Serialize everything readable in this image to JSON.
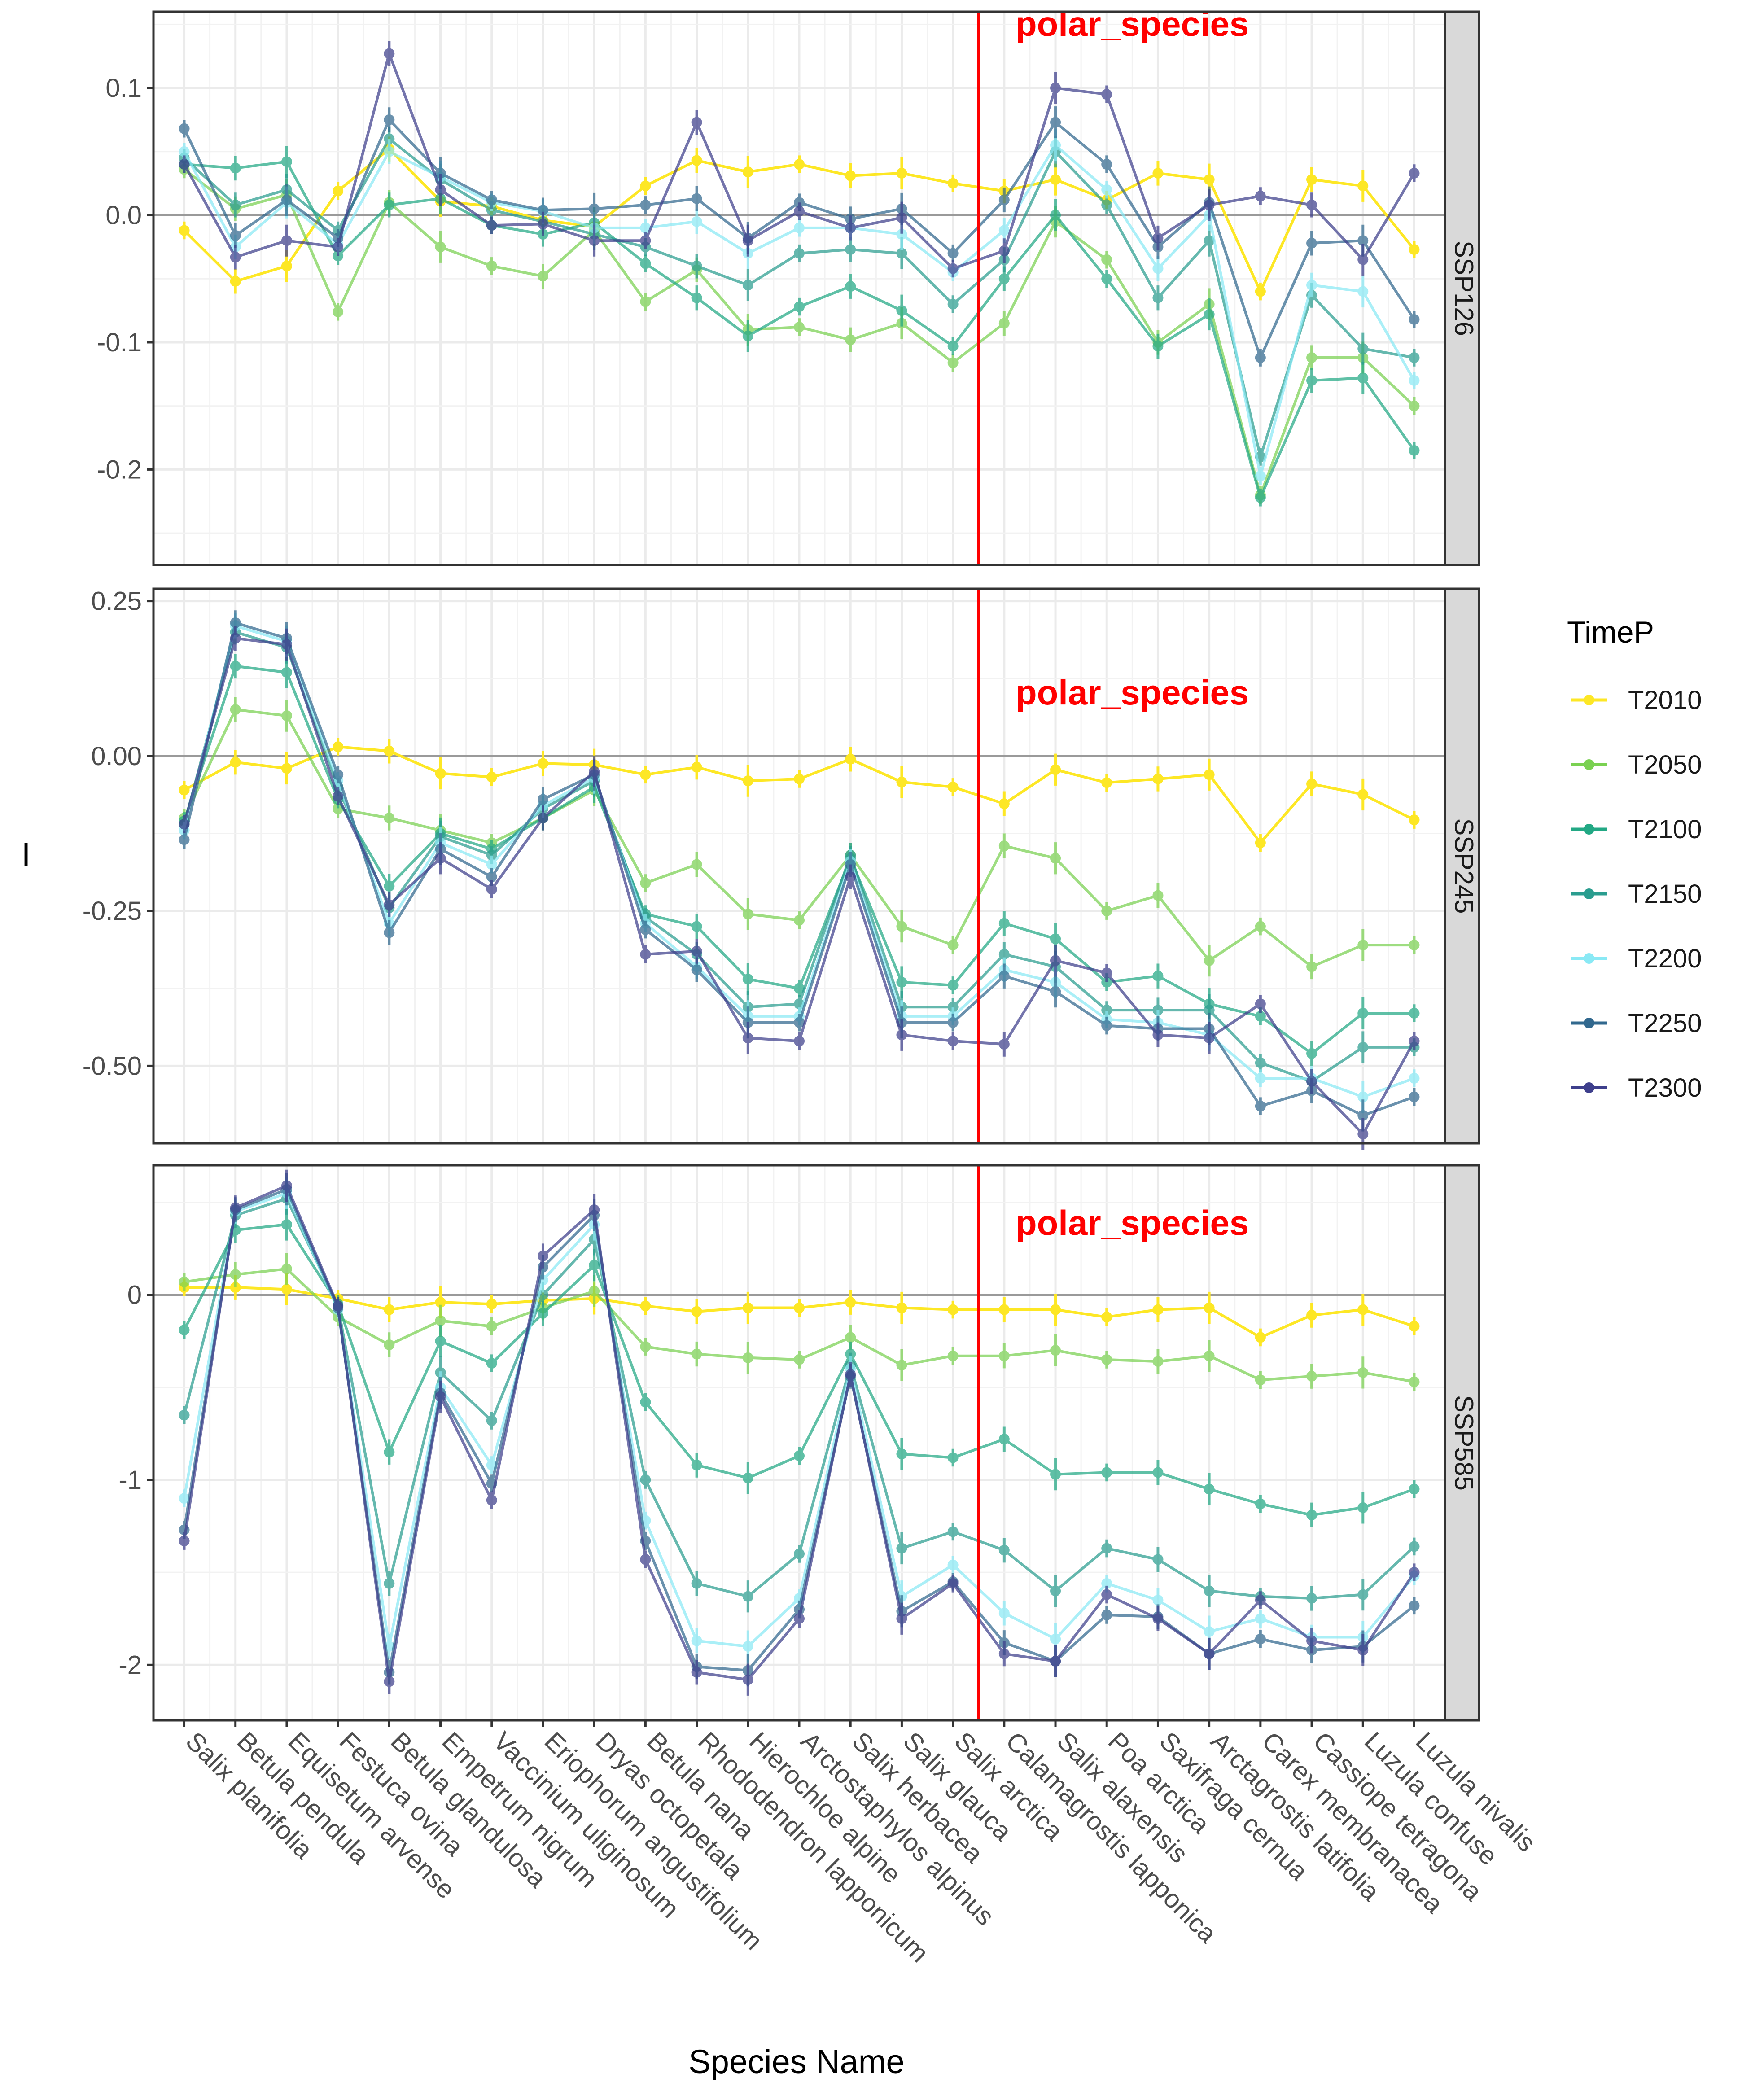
{
  "chart_data": {
    "type": "line",
    "xlabel": "Species Name",
    "ylabel": "I",
    "legend": {
      "title": "TimeP",
      "placement": "right"
    },
    "annotation": "polar_species",
    "annotation_color": "#FF0000",
    "vline_between": [
      "Salix arctica",
      "Calamagrostis lapponica"
    ],
    "categories": [
      "Salix planifolia",
      "Betula pendula",
      "Equisetum arvense",
      "Festuca ovina",
      "Betula glandulosa",
      "Empetrum nigrum",
      "Vaccinium uliginosum",
      "Eriophorum angustifolium",
      "Dryas octopetala",
      "Betula nana",
      "Rhododendron lapponicum",
      "Hierochloe alpine",
      "Arctostaphylos alpinus",
      "Salix herbacea",
      "Salix glauca",
      "Salix arctica",
      "Calamagrostis lapponica",
      "Salix alaxensis",
      "Poa arctica",
      "Saxifraga cernua",
      "Arctagrostis latifolia",
      "Carex membranacea",
      "Cassiope tetragona",
      "Luzula confuse",
      "Luzula nivalis"
    ],
    "series_meta": [
      {
        "name": "T2010",
        "color": "#FDE725"
      },
      {
        "name": "T2050",
        "color": "#7AD151"
      },
      {
        "name": "T2100",
        "color": "#22A884"
      },
      {
        "name": "T2150",
        "color": "#2A9D8F"
      },
      {
        "name": "T2200",
        "color": "#8AE9F5"
      },
      {
        "name": "T2250",
        "color": "#31688E"
      },
      {
        "name": "T2300",
        "color": "#3E3F8C"
      }
    ],
    "panels": [
      {
        "strip": "SSP126",
        "ylim": [
          -0.275,
          0.16
        ],
        "ticks": [
          -0.2,
          -0.1,
          0.0,
          0.1
        ],
        "tick_labels": [
          "-0.2",
          "-0.1",
          "0.0",
          "0.1"
        ],
        "series": [
          {
            "name": "T2010",
            "values": [
              -0.012,
              -0.052,
              -0.04,
              0.019,
              0.052,
              0.011,
              0.007,
              -0.004,
              -0.009,
              0.023,
              0.043,
              0.034,
              0.04,
              0.031,
              0.033,
              0.025,
              0.019,
              0.028,
              0.012,
              0.033,
              0.028,
              -0.06,
              0.028,
              0.023,
              -0.027
            ]
          },
          {
            "name": "T2050",
            "values": [
              0.036,
              0.005,
              0.016,
              -0.076,
              0.01,
              -0.025,
              -0.04,
              -0.048,
              -0.012,
              -0.068,
              -0.043,
              -0.09,
              -0.088,
              -0.098,
              -0.085,
              -0.116,
              -0.085,
              -0.005,
              -0.035,
              -0.1,
              -0.07,
              -0.22,
              -0.112,
              -0.112,
              -0.15
            ]
          },
          {
            "name": "T2100",
            "values": [
              0.04,
              0.037,
              0.042,
              -0.032,
              0.008,
              0.013,
              -0.008,
              -0.015,
              -0.006,
              -0.038,
              -0.065,
              -0.095,
              -0.072,
              -0.056,
              -0.075,
              -0.103,
              -0.05,
              0.0,
              -0.05,
              -0.103,
              -0.078,
              -0.222,
              -0.13,
              -0.128,
              -0.185
            ]
          },
          {
            "name": "T2150",
            "values": [
              0.045,
              0.008,
              0.02,
              -0.012,
              0.06,
              0.028,
              0.004,
              -0.005,
              -0.015,
              -0.025,
              -0.04,
              -0.055,
              -0.03,
              -0.027,
              -0.03,
              -0.07,
              -0.035,
              0.05,
              0.008,
              -0.065,
              -0.02,
              -0.19,
              -0.063,
              -0.105,
              -0.112
            ]
          },
          {
            "name": "T2200",
            "values": [
              0.05,
              -0.025,
              0.01,
              -0.023,
              0.05,
              0.03,
              0.01,
              0.003,
              -0.01,
              -0.01,
              -0.005,
              -0.03,
              -0.01,
              -0.01,
              -0.015,
              -0.045,
              -0.012,
              0.055,
              0.02,
              -0.042,
              0.0,
              -0.205,
              -0.055,
              -0.06,
              -0.13
            ]
          },
          {
            "name": "T2250",
            "values": [
              0.068,
              -0.016,
              0.012,
              -0.018,
              0.075,
              0.033,
              0.012,
              0.004,
              0.005,
              0.008,
              0.013,
              -0.018,
              0.01,
              -0.003,
              0.005,
              -0.03,
              0.012,
              0.073,
              0.04,
              -0.025,
              0.01,
              -0.112,
              -0.022,
              -0.02,
              -0.082
            ]
          },
          {
            "name": "T2300",
            "values": [
              0.04,
              -0.033,
              -0.02,
              -0.025,
              0.127,
              0.02,
              -0.008,
              -0.007,
              -0.02,
              -0.02,
              0.073,
              -0.02,
              0.003,
              -0.01,
              -0.002,
              -0.042,
              -0.028,
              0.1,
              0.095,
              -0.018,
              0.008,
              0.015,
              0.008,
              -0.035,
              0.033
            ]
          }
        ]
      },
      {
        "strip": "SSP245",
        "ylim": [
          -0.625,
          0.27
        ],
        "ticks": [
          -0.5,
          -0.25,
          0.0,
          0.25
        ],
        "tick_labels": [
          "-0.50",
          "-0.25",
          "0.00",
          "0.25"
        ],
        "series": [
          {
            "name": "T2010",
            "values": [
              -0.055,
              -0.01,
              -0.02,
              0.015,
              0.008,
              -0.028,
              -0.034,
              -0.012,
              -0.014,
              -0.03,
              -0.018,
              -0.04,
              -0.037,
              -0.005,
              -0.042,
              -0.05,
              -0.077,
              -0.022,
              -0.043,
              -0.037,
              -0.03,
              -0.14,
              -0.045,
              -0.062,
              -0.103
            ]
          },
          {
            "name": "T2050",
            "values": [
              -0.1,
              0.075,
              0.065,
              -0.085,
              -0.1,
              -0.12,
              -0.14,
              -0.1,
              -0.055,
              -0.205,
              -0.175,
              -0.255,
              -0.265,
              -0.16,
              -0.275,
              -0.305,
              -0.145,
              -0.165,
              -0.25,
              -0.225,
              -0.33,
              -0.275,
              -0.34,
              -0.305,
              -0.305
            ]
          },
          {
            "name": "T2100",
            "values": [
              -0.105,
              0.145,
              0.135,
              -0.07,
              -0.21,
              -0.125,
              -0.15,
              -0.1,
              -0.05,
              -0.255,
              -0.275,
              -0.36,
              -0.375,
              -0.165,
              -0.365,
              -0.37,
              -0.27,
              -0.295,
              -0.365,
              -0.355,
              -0.4,
              -0.42,
              -0.48,
              -0.415,
              -0.415
            ]
          },
          {
            "name": "T2150",
            "values": [
              -0.11,
              0.2,
              0.175,
              -0.05,
              -0.245,
              -0.13,
              -0.16,
              -0.085,
              -0.04,
              -0.26,
              -0.32,
              -0.405,
              -0.4,
              -0.16,
              -0.405,
              -0.405,
              -0.32,
              -0.34,
              -0.41,
              -0.41,
              -0.41,
              -0.495,
              -0.525,
              -0.47,
              -0.47
            ]
          },
          {
            "name": "T2200",
            "values": [
              -0.12,
              0.21,
              0.185,
              -0.04,
              -0.27,
              -0.14,
              -0.175,
              -0.08,
              -0.035,
              -0.27,
              -0.34,
              -0.42,
              -0.42,
              -0.17,
              -0.42,
              -0.42,
              -0.345,
              -0.365,
              -0.425,
              -0.43,
              -0.45,
              -0.52,
              -0.52,
              -0.55,
              -0.52
            ]
          },
          {
            "name": "T2250",
            "values": [
              -0.135,
              0.215,
              0.19,
              -0.03,
              -0.285,
              -0.15,
              -0.195,
              -0.07,
              -0.03,
              -0.28,
              -0.345,
              -0.43,
              -0.43,
              -0.175,
              -0.43,
              -0.43,
              -0.355,
              -0.38,
              -0.435,
              -0.44,
              -0.44,
              -0.565,
              -0.54,
              -0.58,
              -0.55
            ]
          },
          {
            "name": "T2300",
            "values": [
              -0.11,
              0.19,
              0.18,
              -0.065,
              -0.24,
              -0.165,
              -0.215,
              -0.1,
              -0.025,
              -0.32,
              -0.315,
              -0.455,
              -0.46,
              -0.195,
              -0.45,
              -0.46,
              -0.465,
              -0.33,
              -0.35,
              -0.45,
              -0.455,
              -0.4,
              -0.525,
              -0.61,
              -0.46
            ]
          }
        ]
      },
      {
        "strip": "SSP585",
        "ylim": [
          -2.3,
          0.7
        ],
        "ticks": [
          -2,
          -1,
          0
        ],
        "tick_labels": [
          "-2",
          "-1",
          "0"
        ],
        "series": [
          {
            "name": "T2010",
            "values": [
              0.04,
              0.04,
              0.03,
              -0.02,
              -0.08,
              -0.04,
              -0.05,
              -0.03,
              -0.02,
              -0.06,
              -0.09,
              -0.07,
              -0.07,
              -0.04,
              -0.07,
              -0.08,
              -0.08,
              -0.08,
              -0.12,
              -0.08,
              -0.07,
              -0.23,
              -0.11,
              -0.08,
              -0.17
            ]
          },
          {
            "name": "T2050",
            "values": [
              0.07,
              0.11,
              0.14,
              -0.12,
              -0.27,
              -0.14,
              -0.17,
              -0.07,
              0.02,
              -0.28,
              -0.32,
              -0.34,
              -0.35,
              -0.23,
              -0.38,
              -0.33,
              -0.33,
              -0.3,
              -0.35,
              -0.36,
              -0.33,
              -0.46,
              -0.44,
              -0.42,
              -0.47
            ]
          },
          {
            "name": "T2100",
            "values": [
              -0.19,
              0.35,
              0.38,
              -0.05,
              -0.85,
              -0.25,
              -0.37,
              -0.1,
              0.16,
              -0.58,
              -0.92,
              -0.99,
              -0.87,
              -0.32,
              -0.86,
              -0.88,
              -0.78,
              -0.97,
              -0.96,
              -0.96,
              -1.05,
              -1.13,
              -1.19,
              -1.15,
              -1.05
            ]
          },
          {
            "name": "T2150",
            "values": [
              -0.65,
              0.43,
              0.52,
              -0.06,
              -1.56,
              -0.42,
              -0.68,
              0.0,
              0.3,
              -1.0,
              -1.56,
              -1.63,
              -1.4,
              -0.38,
              -1.37,
              -1.28,
              -1.38,
              -1.6,
              -1.37,
              -1.43,
              -1.6,
              -1.63,
              -1.64,
              -1.62,
              -1.36
            ]
          },
          {
            "name": "T2200",
            "values": [
              -1.1,
              0.45,
              0.55,
              -0.08,
              -1.9,
              -0.5,
              -0.92,
              0.08,
              0.38,
              -1.22,
              -1.87,
              -1.9,
              -1.64,
              -0.4,
              -1.63,
              -1.46,
              -1.72,
              -1.86,
              -1.56,
              -1.65,
              -1.82,
              -1.75,
              -1.85,
              -1.85,
              -1.52
            ]
          },
          {
            "name": "T2250",
            "values": [
              -1.27,
              0.46,
              0.57,
              -0.07,
              -2.04,
              -0.53,
              -1.02,
              0.15,
              0.43,
              -1.33,
              -2.01,
              -2.03,
              -1.7,
              -0.44,
              -1.71,
              -1.55,
              -1.88,
              -1.98,
              -1.73,
              -1.74,
              -1.94,
              -1.86,
              -1.92,
              -1.9,
              -1.68
            ]
          },
          {
            "name": "T2300",
            "values": [
              -1.33,
              0.47,
              0.59,
              -0.06,
              -2.09,
              -0.55,
              -1.11,
              0.21,
              0.46,
              -1.43,
              -2.04,
              -2.08,
              -1.75,
              -0.43,
              -1.75,
              -1.56,
              -1.94,
              -1.98,
              -1.62,
              -1.75,
              -1.94,
              -1.65,
              -1.87,
              -1.92,
              -1.5
            ]
          }
        ]
      }
    ]
  }
}
